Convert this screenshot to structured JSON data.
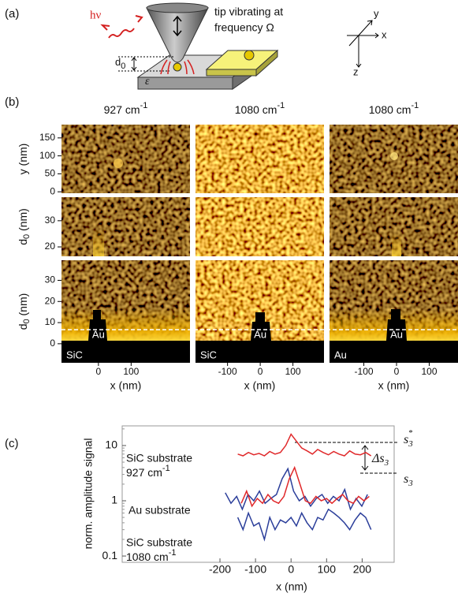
{
  "panel_labels": [
    "(a)",
    "(b)",
    "(c)"
  ],
  "panel_a": {
    "photon": "hν",
    "tip_text": [
      "tip vibrating at",
      "frequency Ω"
    ],
    "gap": {
      "text": "d",
      "sub": "0"
    },
    "substrate": "ε",
    "axes": [
      "y",
      "x",
      "z"
    ]
  },
  "panel_b": {
    "columns": [
      {
        "title": {
          "text": "927 cm",
          "sup": "-1"
        },
        "xlim": [
          -113,
          280
        ],
        "xticks": [
          0,
          100
        ],
        "label": "x (nm)",
        "materials": [
          "SiC",
          "Au"
        ]
      },
      {
        "title": {
          "text": "1080 cm",
          "sup": "-1"
        },
        "xlim": [
          -198,
          195
        ],
        "xticks": [
          -100,
          0,
          100
        ],
        "label": "x (nm)",
        "materials": [
          "SiC",
          "Au"
        ]
      },
      {
        "title": {
          "text": "1080 cm",
          "sup": "-1"
        },
        "xlim": [
          -205,
          188
        ],
        "xticks": [
          -100,
          0,
          100
        ],
        "label": "x (nm)",
        "materials": [
          "Au",
          "Au"
        ]
      }
    ],
    "rows": [
      {
        "label": {
          "text": "y (nm)"
        },
        "ylim": [
          -4,
          187
        ],
        "yticks": [
          0,
          50,
          100,
          150
        ]
      },
      {
        "label": {
          "text": "d",
          "sub": "0",
          "after": " (nm)"
        },
        "ylim": [
          16.4,
          39
        ],
        "yticks": [
          20,
          30
        ]
      },
      {
        "label": {
          "text": "d",
          "sub": "0",
          "after": " (nm)"
        },
        "ylim": [
          -9,
          39.5
        ],
        "yticks": [
          0,
          10,
          20,
          30
        ]
      }
    ]
  },
  "chart_data": {
    "type": "line",
    "x_label": "x (nm)",
    "y_label": "norm. amplitude signal",
    "log_y": true,
    "xlim": [
      -475,
      290
    ],
    "ylim": [
      0.077,
      22.7
    ],
    "xticks": [
      -200,
      -100,
      0,
      100,
      200
    ],
    "yticks": [
      0.1,
      1,
      10
    ],
    "series": [
      {
        "color": "#e0282a",
        "x": [
          -150,
          -135,
          -120,
          -105,
          -90,
          -75,
          -60,
          -45,
          -30,
          -15,
          0,
          15,
          30,
          45,
          60,
          75,
          90,
          105,
          120,
          135,
          150,
          165,
          180,
          195,
          210,
          225
        ],
        "values": [
          7,
          6.5,
          7.5,
          6.8,
          7.2,
          6.5,
          7.8,
          7,
          7.5,
          10,
          16,
          12,
          9,
          8,
          7,
          8.5,
          7.5,
          6.8,
          7.8,
          7,
          6.5,
          8,
          7,
          6.8,
          7.5,
          6.5
        ]
      },
      {
        "color": "#2b3e9a",
        "x": [
          -185,
          -169,
          -153,
          -137,
          -121,
          -105,
          -89,
          -73,
          -57,
          -41,
          -25,
          -9,
          7,
          23,
          39,
          55,
          71,
          87,
          103,
          119,
          135,
          151,
          167,
          183,
          199,
          215
        ],
        "values": [
          1.4,
          0.9,
          1.2,
          0.7,
          1.3,
          1,
          1.5,
          0.9,
          1.1,
          1.3,
          2.5,
          3.8,
          1.5,
          1,
          1.2,
          0.8,
          1.1,
          1.3,
          0.9,
          1.2,
          1,
          1.6,
          0.7,
          1.1,
          0.8,
          1.3
        ]
      },
      {
        "color": "#e0282a",
        "x": [
          -140,
          -125,
          -110,
          -95,
          -80,
          -65,
          -50,
          -35,
          -20,
          -5,
          10,
          25,
          40,
          55,
          70,
          85,
          100,
          115,
          130,
          145,
          160,
          175,
          190,
          205,
          220
        ],
        "values": [
          0.9,
          1.5,
          0.8,
          1.1,
          0.9,
          1.3,
          1,
          0.9,
          1.2,
          2.5,
          4,
          2,
          1,
          0.9,
          1.2,
          1,
          1.1,
          0.9,
          1.1,
          1.3,
          1,
          0.9,
          1.2,
          1,
          1.2
        ]
      },
      {
        "color": "#2b3e9a",
        "x": [
          -150,
          -135,
          -120,
          -105,
          -90,
          -75,
          -60,
          -45,
          -30,
          -15,
          0,
          15,
          30,
          45,
          60,
          75,
          90,
          105,
          120,
          135,
          150,
          165,
          180,
          195,
          210,
          225
        ],
        "values": [
          0.5,
          0.3,
          0.6,
          0.35,
          0.4,
          0.2,
          0.5,
          0.3,
          0.45,
          0.4,
          0.5,
          0.35,
          0.6,
          0.4,
          0.3,
          0.5,
          0.45,
          0.7,
          0.6,
          0.5,
          0.4,
          0.3,
          0.45,
          0.6,
          0.5,
          0.3
        ]
      }
    ],
    "annotations": [
      {
        "text": "SiC substrate"
      },
      {
        "text": "927 cm",
        "sup": "-1"
      },
      {
        "text": "Au substrate"
      },
      {
        "text": "SiC substrate"
      },
      {
        "text": "1080 cm",
        "sup": "-1"
      }
    ],
    "levels": [
      {
        "base": "s",
        "sub": "3",
        "sup": "*"
      },
      {
        "base": "Δs",
        "sub": "3"
      },
      {
        "base": "s",
        "sub": "3"
      }
    ]
  }
}
